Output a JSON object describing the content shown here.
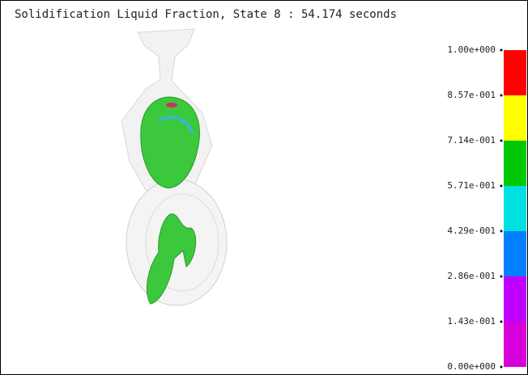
{
  "title": "Solidification Liquid Fraction,  State 8 : 54.174 seconds",
  "legend": {
    "labels": [
      "1.00e+000",
      "8.57e-001",
      "7.14e-001",
      "5.71e-001",
      "4.29e-001",
      "2.86e-001",
      "1.43e-001",
      "0.00e+000"
    ],
    "colors": [
      "#ff0000",
      "#ffff00",
      "#00c800",
      "#00e0e0",
      "#0080ff",
      "#c000ff",
      "#d800d8"
    ]
  }
}
